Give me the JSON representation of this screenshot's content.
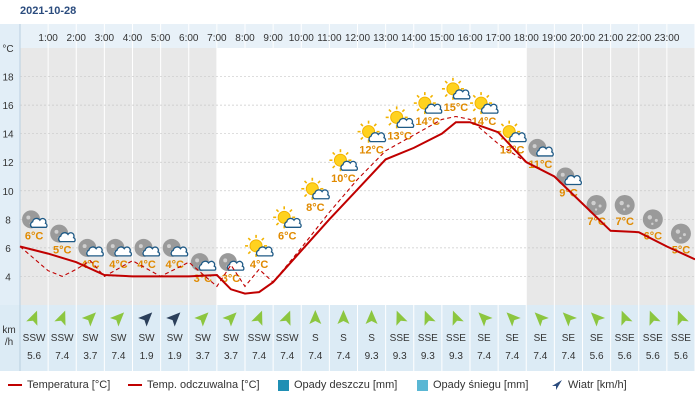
{
  "date": "2021-10-28",
  "colors": {
    "temperature": "#c00000",
    "felt": "#c00000",
    "rain": "#1f8fb4",
    "snow": "#5ab7d4",
    "temp_label": "#e08a00",
    "night_band": "#e8e8e8",
    "wind_strip": "#dcebf5"
  },
  "chart_data": {
    "type": "line",
    "x_hours": [
      "1:00",
      "2:00",
      "3:00",
      "4:00",
      "5:00",
      "6:00",
      "7:00",
      "8:00",
      "9:00",
      "10:00",
      "11:00",
      "12:00",
      "13:00",
      "14:00",
      "15:00",
      "16:00",
      "17:00",
      "18:00",
      "19:00",
      "20:00",
      "21:00",
      "22:00",
      "23:00"
    ],
    "y_unit": "°C",
    "y_ticks": [
      4,
      6,
      8,
      10,
      12,
      14,
      16,
      18
    ],
    "ylim": [
      2,
      20
    ],
    "grid": true,
    "series": [
      {
        "name": "Temperatura [°C]",
        "style": "solid",
        "x": [
          0,
          1,
          2,
          3,
          4,
          5,
          6,
          7,
          7.5,
          8,
          8.5,
          9,
          10,
          11,
          12,
          13,
          14,
          15,
          15.5,
          16,
          17,
          18,
          19,
          20,
          21,
          22,
          23,
          24
        ],
        "values": [
          6.1,
          5.6,
          5.0,
          4.1,
          4.0,
          4.0,
          4.0,
          4.1,
          3.1,
          2.8,
          2.9,
          3.6,
          5.8,
          8.0,
          10.1,
          12.2,
          13.0,
          14.0,
          14.8,
          14.8,
          14.1,
          12.0,
          11.0,
          9.1,
          7.2,
          7.1,
          6.1,
          5.2
        ]
      },
      {
        "name": "Temp. odczuwalna [°C]",
        "style": "dashed",
        "x": [
          0,
          1,
          1.5,
          2,
          2.5,
          3,
          4,
          5,
          6,
          7,
          7.5,
          8,
          8.5,
          9,
          10,
          11,
          12,
          13,
          14,
          15,
          15.5,
          16,
          17,
          18,
          19,
          20,
          21,
          22,
          23,
          24
        ],
        "values": [
          6.1,
          4.4,
          4.0,
          4.5,
          5.1,
          4.0,
          5.1,
          4.0,
          5.0,
          3.3,
          4.8,
          3.3,
          4.5,
          3.6,
          6.0,
          8.5,
          10.8,
          12.8,
          13.9,
          15.0,
          15.2,
          15.0,
          13.3,
          12.0,
          11.0,
          9.1,
          7.2,
          7.1,
          6.1,
          5.2
        ]
      }
    ],
    "temp_labels": [
      "6°C",
      "5°C",
      "4°C",
      "4°C",
      "4°C",
      "4°C",
      "3°C",
      "3°C",
      "4°C",
      "6°C",
      "8°C",
      "10°C",
      "12°C",
      "13°C",
      "14°C",
      "15°C",
      "14°C",
      "13°C",
      "11°C",
      "9°C",
      "7°C",
      "7°C",
      "6°C",
      "5°C"
    ],
    "label_temps": [
      6.6,
      5.6,
      4.6,
      4.6,
      4.6,
      4.6,
      3.6,
      3.6,
      4.6,
      6.6,
      8.6,
      10.6,
      12.6,
      13.6,
      14.6,
      15.6,
      14.6,
      12.6,
      11.6,
      9.6,
      7.6,
      7.6,
      6.6,
      5.6
    ],
    "weather_icons": [
      "night-partly-cloudy-icon",
      "night-partly-cloudy-icon",
      "night-partly-cloudy-icon",
      "night-partly-cloudy-icon",
      "night-partly-cloudy-icon",
      "night-partly-cloudy-icon",
      "night-partly-cloudy-icon",
      "night-partly-cloudy-icon",
      "sun-cloud-icon",
      "sun-cloud-icon",
      "sun-cloud-icon",
      "sun-cloud-icon",
      "sun-cloud-icon",
      "sun-cloud-icon",
      "sun-cloud-icon",
      "sun-cloud-icon",
      "sun-cloud-icon",
      "sun-cloud-icon",
      "night-partly-cloudy-icon",
      "night-partly-cloudy-icon",
      "moon-icon",
      "moon-icon",
      "moon-icon",
      "moon-icon"
    ],
    "night_bands": [
      [
        0,
        7
      ],
      [
        18,
        24
      ]
    ],
    "wind": {
      "unit_line1": "km",
      "unit_line2": "/h",
      "directions": [
        "SSW",
        "SSW",
        "SW",
        "SW",
        "SW",
        "SW",
        "SW",
        "SW",
        "SSW",
        "SSW",
        "S",
        "S",
        "S",
        "SSE",
        "SSE",
        "SSE",
        "SE",
        "SE",
        "SE",
        "SE",
        "SE",
        "SSE",
        "SSE",
        "SSE"
      ],
      "speeds": [
        "5.6",
        "7.4",
        "3.7",
        "7.4",
        "1.9",
        "1.9",
        "3.7",
        "3.7",
        "7.4",
        "7.4",
        "7.4",
        "7.4",
        "9.3",
        "9.3",
        "9.3",
        "9.3",
        "7.4",
        "7.4",
        "7.4",
        "7.4",
        "5.6",
        "5.6",
        "5.6",
        "5.6"
      ],
      "bearing_deg": [
        22,
        22,
        45,
        45,
        45,
        45,
        45,
        45,
        22,
        22,
        0,
        0,
        0,
        -22,
        -22,
        -22,
        -45,
        -45,
        -45,
        -45,
        -45,
        -22,
        -22,
        -22
      ],
      "dark_arrow": [
        false,
        false,
        false,
        false,
        true,
        true,
        false,
        false,
        false,
        false,
        false,
        false,
        false,
        false,
        false,
        false,
        false,
        false,
        false,
        false,
        false,
        false,
        false,
        false
      ]
    }
  },
  "legend": {
    "temperature": "Temperatura [°C]",
    "felt": "Temp. odczuwalna [°C]",
    "rain": "Opady deszczu [mm]",
    "snow": "Opady śniegu [mm]",
    "wind": "Wiatr [km/h]"
  }
}
